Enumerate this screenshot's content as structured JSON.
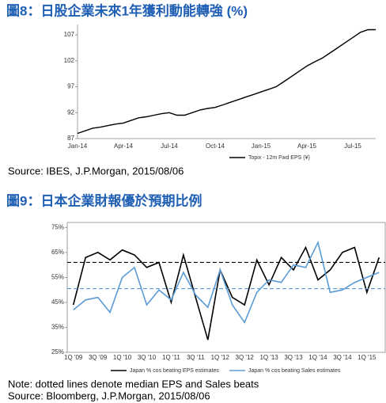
{
  "chart_data": [
    {
      "type": "line",
      "title": "圖8：日股企業未來1年獲利動能轉強 (%)",
      "source": "Source: IBES, J.P.Morgan, 2015/08/06",
      "categories": [
        "Jan-14",
        null,
        null,
        null,
        null,
        null,
        "Apr-14",
        null,
        null,
        null,
        null,
        null,
        "Jul-14",
        null,
        null,
        null,
        null,
        null,
        "Oct-14",
        null,
        null,
        null,
        null,
        null,
        "Jan-15",
        null,
        null,
        null,
        null,
        null,
        "Apr-15",
        null,
        null,
        null,
        null,
        null,
        "Jul-15",
        null,
        null,
        null
      ],
      "series": [
        {
          "name": "Topix - 12m Fwd EPS (¥)",
          "color": "#000000",
          "values": [
            88,
            88.5,
            89,
            89.2,
            89.5,
            89.8,
            90,
            90.5,
            91,
            91.2,
            91.5,
            91.8,
            92,
            91.5,
            91.5,
            92,
            92.5,
            92.8,
            93,
            93.5,
            94,
            94.5,
            95,
            95.5,
            96,
            96.5,
            97,
            98,
            99,
            100,
            101,
            101.8,
            102.5,
            103.5,
            104.5,
            105.5,
            106.5,
            107.5,
            108,
            108
          ]
        }
      ],
      "ylim": [
        87,
        109
      ],
      "yticks": [
        87,
        92,
        97,
        102,
        107
      ]
    },
    {
      "type": "line",
      "title": "圖9：日本企業財報優於預期比例",
      "note": "Note: dotted lines denote median EPS and Sales beats",
      "source": "Source: Bloomberg, J.P.Morgan, 2015/08/06",
      "categories": [
        "1Q '09",
        null,
        "3Q '09",
        null,
        "1Q '10",
        null,
        "3Q '10",
        null,
        "1Q '11",
        null,
        "3Q '11",
        null,
        "1Q '12",
        null,
        "3Q '12",
        null,
        "1Q '13",
        null,
        "3Q '13",
        null,
        "1Q '14",
        null,
        "3Q '14",
        null,
        "1Q '15",
        null
      ],
      "series": [
        {
          "name": "Japan % cos beating EPS estimates",
          "color": "#000000",
          "median": 61,
          "values": [
            44,
            63,
            65,
            62,
            66,
            64,
            59,
            61,
            45,
            64,
            47,
            30,
            58,
            47,
            44,
            62,
            52,
            63,
            58,
            67,
            54,
            58,
            65,
            67,
            49,
            63
          ]
        },
        {
          "name": "Japan % cos beating Sales estimates",
          "color": "#5b9bd5",
          "median": 50.5,
          "values": [
            42,
            46,
            47,
            41,
            55,
            59,
            44,
            50,
            46,
            57,
            48,
            43,
            58,
            44,
            37,
            49,
            54,
            53,
            60,
            59,
            69,
            49,
            50,
            53,
            55,
            57
          ]
        }
      ],
      "ylim": [
        25,
        77
      ],
      "yticks": [
        {
          "value": 25,
          "label": "25%"
        },
        {
          "value": 35,
          "label": "35%"
        },
        {
          "value": 45,
          "label": "45%"
        },
        {
          "value": 55,
          "label": "55%"
        },
        {
          "value": 65,
          "label": "65%"
        },
        {
          "value": 75,
          "label": "75%"
        }
      ]
    }
  ]
}
